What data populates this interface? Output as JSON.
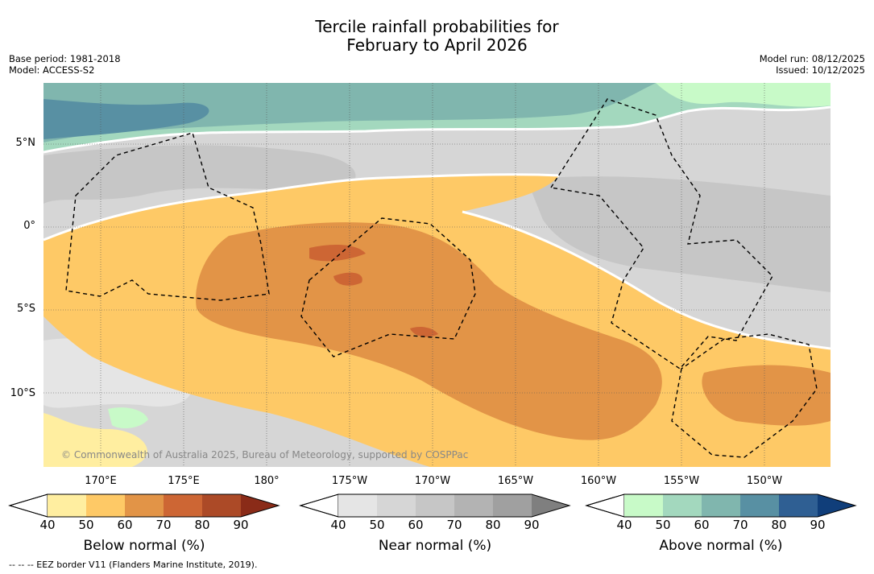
{
  "title_line1": "Tercile rainfall probabilities for",
  "title_line2": "February to April 2026",
  "meta_left": {
    "base_period": "Base period: 1981-2018",
    "model": "Model: ACCESS-S2"
  },
  "meta_right": {
    "model_run": "Model run: 08/12/2025",
    "issued": "Issued: 10/12/2025"
  },
  "lat_labels": [
    "5°N",
    "0°",
    "5°S",
    "10°S"
  ],
  "lon_labels": [
    "170°E",
    "175°E",
    "180°",
    "175°W",
    "170°W",
    "165°W",
    "160°W",
    "155°W",
    "150°W"
  ],
  "copyright": "© Commonwealth of Australia 2025, Bureau of Meteorology, supported by COSPPac",
  "colorbars": [
    {
      "title": "Below normal (%)",
      "ticks": [
        "40",
        "50",
        "60",
        "70",
        "80",
        "90"
      ],
      "colors": [
        "#ffeea0",
        "#fec966",
        "#e29447",
        "#cd6634",
        "#ac4a27",
        "#8a2b18"
      ]
    },
    {
      "title": "Near normal (%)",
      "ticks": [
        "40",
        "50",
        "60",
        "70",
        "80",
        "90"
      ],
      "colors": [
        "#e5e5e5",
        "#d6d6d6",
        "#c6c6c6",
        "#b3b3b3",
        "#a0a0a0",
        "#7f7f7f"
      ]
    },
    {
      "title": "Above normal (%)",
      "ticks": [
        "40",
        "50",
        "60",
        "70",
        "80",
        "90"
      ],
      "colors": [
        "#c8fac8",
        "#a3d8be",
        "#80b6ae",
        "#5890a3",
        "#2f5f93",
        "#103e7a"
      ]
    }
  ],
  "footnote": "-- -- -- EEZ border V11 (Flanders Marine Institute, 2019)."
}
